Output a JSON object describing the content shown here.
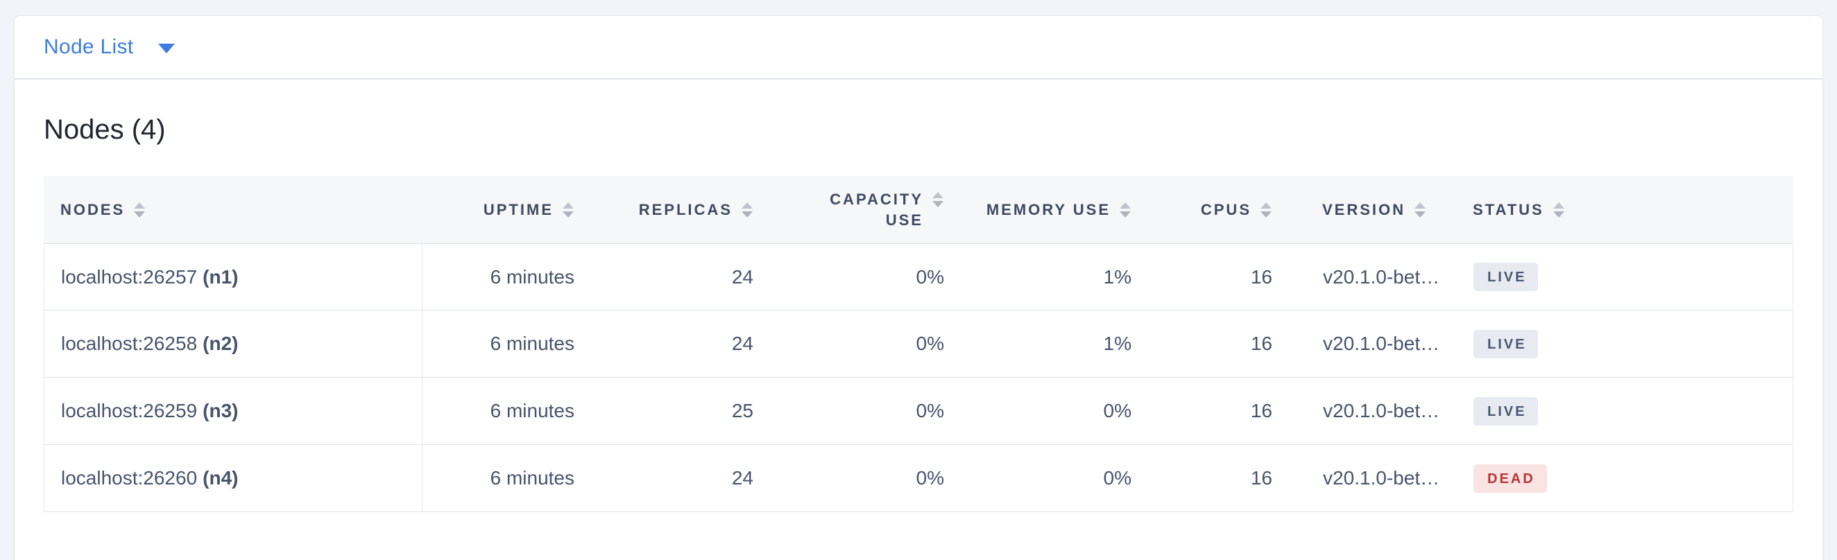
{
  "toolbar": {
    "dropdown_label": "Node List"
  },
  "main": {
    "title": "Nodes (4)"
  },
  "table": {
    "columns": [
      {
        "label": "NODES",
        "align": "left"
      },
      {
        "label": "UPTIME",
        "align": "right"
      },
      {
        "label": "REPLICAS",
        "align": "right"
      },
      {
        "label": "CAPACITY USE",
        "align": "right"
      },
      {
        "label": "MEMORY USE",
        "align": "right"
      },
      {
        "label": "CPUS",
        "align": "right"
      },
      {
        "label": "VERSION",
        "align": "left"
      },
      {
        "label": "STATUS",
        "align": "left"
      }
    ],
    "rows": [
      {
        "address": "localhost:26257",
        "node_id": "(n1)",
        "uptime": "6 minutes",
        "replicas": "24",
        "capacity_use": "0%",
        "memory_use": "1%",
        "cpus": "16",
        "version": "v20.1.0-bet…",
        "status": "LIVE"
      },
      {
        "address": "localhost:26258",
        "node_id": "(n2)",
        "uptime": "6 minutes",
        "replicas": "24",
        "capacity_use": "0%",
        "memory_use": "1%",
        "cpus": "16",
        "version": "v20.1.0-bet…",
        "status": "LIVE"
      },
      {
        "address": "localhost:26259",
        "node_id": "(n3)",
        "uptime": "6 minutes",
        "replicas": "25",
        "capacity_use": "0%",
        "memory_use": "0%",
        "cpus": "16",
        "version": "v20.1.0-bet…",
        "status": "LIVE"
      },
      {
        "address": "localhost:26260",
        "node_id": "(n4)",
        "uptime": "6 minutes",
        "replicas": "24",
        "capacity_use": "0%",
        "memory_use": "0%",
        "cpus": "16",
        "version": "v20.1.0-bet…",
        "status": "DEAD"
      }
    ]
  },
  "icons": {
    "dropdown_caret": "caret-down",
    "column_sort": "sort-arrows"
  },
  "colors": {
    "accent_blue": "#3d7ce0",
    "live_badge_bg": "#e7eaf1",
    "live_badge_text": "#475872",
    "dead_badge_bg": "#fae3e3",
    "dead_badge_text": "#b63636",
    "header_text": "#3e4a61",
    "cell_text": "#47536b"
  }
}
